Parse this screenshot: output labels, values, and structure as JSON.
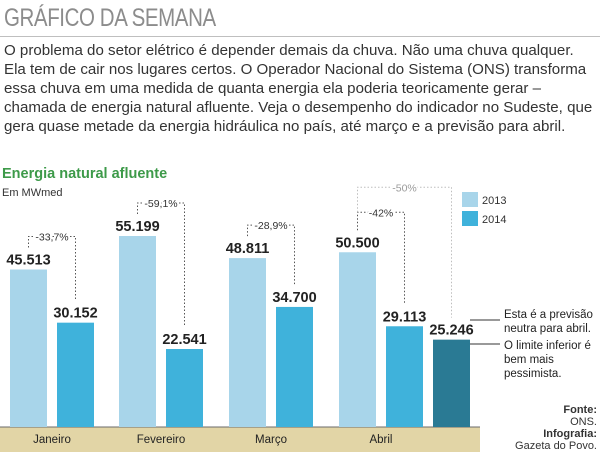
{
  "header": {
    "title": "GRÁFICO DA SEMANA"
  },
  "intro": {
    "text": "O problema do setor elétrico é depender demais da chuva. Não uma chuva qualquer. Ela tem de cair nos lugares certos. O Operador Nacional do Sistema (ONS) transforma essa chuva em uma medida de quanta energia ela poderia teoricamente gerar – chamada de energia natural afluente. Veja o desempenho do indicador no Sudeste, que gera quase metade da energia hidráulica no país, até março e a previsão para abril."
  },
  "colors": {
    "bar_2013": "#a8d5ea",
    "bar_2014": "#3fb2db",
    "bar_forecast": "#2a7a94",
    "title_green": "#3d9a49",
    "axis_band": "#e2d5a6"
  },
  "chart_data": {
    "type": "bar",
    "title": "Energia natural afluente",
    "ylabel": "Em MWmed",
    "categories": [
      "Janeiro",
      "Fevereiro",
      "Março",
      "Abril"
    ],
    "series": [
      {
        "name": "2013",
        "values": [
          45513,
          55199,
          48811,
          50500
        ]
      },
      {
        "name": "2014",
        "values": [
          30152,
          22541,
          34700,
          29113
        ]
      }
    ],
    "value_labels": {
      "2013": [
        "45.513",
        "55.199",
        "48.811",
        "50.500"
      ],
      "2014": [
        "30.152",
        "22.541",
        "34.700",
        "29.113"
      ]
    },
    "forecast": {
      "category": "Abril",
      "value": 25246,
      "label": "25.246"
    },
    "change_labels": [
      "-33,7%",
      "-59,1%",
      "-28,9%",
      "-42%"
    ],
    "extra_change_label": "-50%",
    "annotations": [
      "Esta é a previsão neutra para abril.",
      "O limite inferior é bem mais pessimista."
    ],
    "ylim": [
      0,
      60000
    ]
  },
  "source": {
    "fonte_label": "Fonte:",
    "fonte": "ONS.",
    "infografia_label": "Infografia:",
    "infografia": "Gazeta do Povo."
  }
}
